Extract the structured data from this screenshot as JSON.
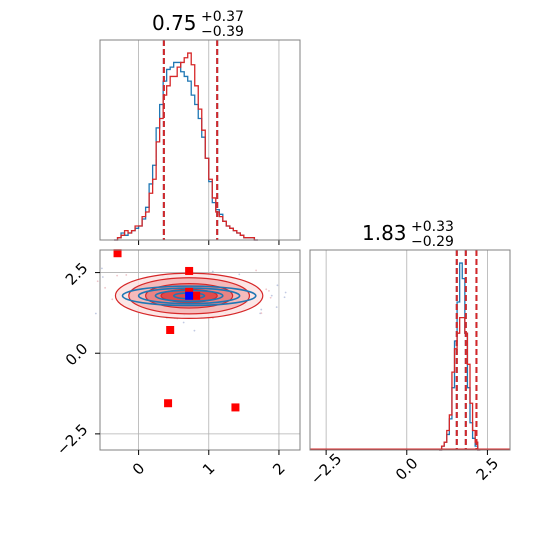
{
  "colors": {
    "blue": "#1f77b4",
    "red": "#d62728",
    "grid": "#b0b0b0",
    "frame": "#808080"
  },
  "chart_data": [
    {
      "type": "histogram",
      "panel": "top-left",
      "title": {
        "value": "0.75",
        "plus": "+0.37",
        "minus": "−0.39"
      },
      "xlim": [
        -0.55,
        2.3
      ],
      "grid": true,
      "quantile_lines": {
        "blue": [
          0.36,
          0.75,
          1.12
        ],
        "red": [
          0.36,
          0.75,
          1.12
        ]
      },
      "bin_edges_start": -0.35,
      "bin_width": 0.05,
      "series": [
        {
          "name": "",
          "color": "blue",
          "counts": [
            0,
            1,
            3,
            2,
            3,
            4,
            5,
            6,
            9,
            14,
            24,
            32,
            48,
            58,
            68,
            73,
            74,
            76,
            76,
            72,
            70,
            68,
            62,
            58,
            52,
            44,
            35,
            25,
            16,
            13,
            11,
            8,
            6,
            5,
            4,
            3,
            2,
            1,
            1,
            1,
            0
          ]
        },
        {
          "name": "",
          "color": "red",
          "counts": [
            0,
            1,
            2,
            4,
            3,
            4,
            6,
            6,
            10,
            12,
            20,
            26,
            42,
            52,
            62,
            66,
            70,
            70,
            74,
            76,
            78,
            80,
            75,
            66,
            56,
            47,
            35,
            26,
            18,
            12,
            10,
            8,
            6,
            5,
            4,
            3,
            2,
            1,
            1,
            1,
            0
          ]
        }
      ]
    },
    {
      "type": "scatter",
      "panel": "bottom-left",
      "xlim": [
        -0.55,
        2.3
      ],
      "ylim": [
        -3.0,
        3.2
      ],
      "xticks": [
        "0",
        "1",
        "2"
      ],
      "yticks": [
        "−2.5",
        "0.0",
        "2.5"
      ],
      "grid": true,
      "contour_center": [
        0.72,
        1.78
      ],
      "blue_contours": [
        [
          0.95,
          0.3
        ],
        [
          0.72,
          0.24
        ],
        [
          0.48,
          0.17
        ],
        [
          0.22,
          0.09
        ]
      ],
      "red_contours": [
        [
          1.05,
          0.7
        ],
        [
          0.86,
          0.56
        ],
        [
          0.62,
          0.38
        ],
        [
          0.4,
          0.2
        ]
      ],
      "red_markers": [
        [
          -0.3,
          3.1
        ],
        [
          0.72,
          2.55
        ],
        [
          0.72,
          1.9
        ],
        [
          0.82,
          1.78
        ],
        [
          0.45,
          0.72
        ],
        [
          0.42,
          -1.55
        ],
        [
          1.38,
          -1.68
        ]
      ],
      "blue_markers": [
        [
          0.72,
          1.78
        ]
      ]
    },
    {
      "type": "histogram",
      "panel": "bottom-right",
      "title": {
        "value": "1.83",
        "plus": "+0.33",
        "minus": "−0.29"
      },
      "xlim": [
        -3.0,
        3.2
      ],
      "xticks": [
        "−2.5",
        "0.0",
        "2.5"
      ],
      "grid": true,
      "quantile_lines": {
        "blue": [
          1.55,
          1.83,
          2.16
        ],
        "red": [
          1.55,
          1.83,
          2.16
        ]
      },
      "bin_edges_start": 1.0,
      "bin_width": 0.08,
      "series": [
        {
          "name": "",
          "color": "blue",
          "counts": [
            0,
            1,
            2,
            4,
            8,
            16,
            28,
            38,
            48,
            44,
            30,
            16,
            7,
            3,
            1,
            0
          ]
        },
        {
          "name": "",
          "color": "red",
          "counts": [
            0,
            1,
            2,
            5,
            9,
            20,
            26,
            30,
            34,
            34,
            30,
            22,
            12,
            5,
            2,
            0
          ]
        }
      ]
    }
  ]
}
